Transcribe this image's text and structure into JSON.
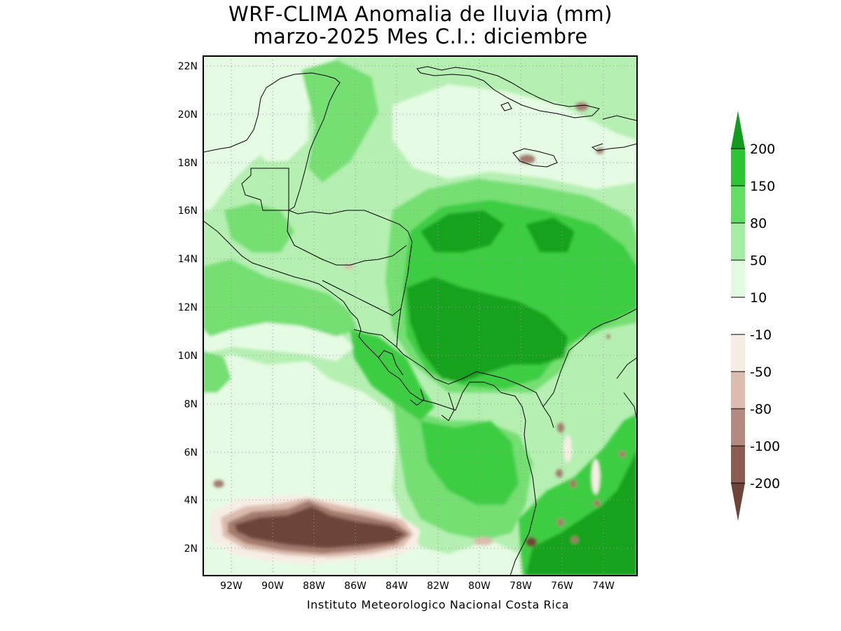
{
  "title": {
    "line1": "WRF-CLIMA Anomalia de lluvia (mm)",
    "line2": "marzo-2025 Mes C.I.: diciembre"
  },
  "footer": "Instituto Meteorologico Nacional Costa Rica",
  "map": {
    "region": "Central America, Caribbean and eastern Tropical Pacific",
    "lon_range": [
      -93.3,
      -72.3
    ],
    "lat_range": [
      1.0,
      22.5
    ],
    "grid": "dotted",
    "lat_ticks": [
      "22N",
      "20N",
      "18N",
      "16N",
      "14N",
      "12N",
      "10N",
      "8N",
      "6N",
      "4N",
      "2N"
    ],
    "lon_ticks": [
      "92W",
      "90W",
      "88W",
      "86W",
      "84W",
      "82W",
      "80W",
      "78W",
      "76W",
      "74W"
    ]
  },
  "colorbar": {
    "labels": [
      "200",
      "150",
      "80",
      "50",
      "10",
      "-10",
      "-50",
      "-80",
      "-100",
      "-200"
    ],
    "colors": [
      "#139b1d",
      "#2ec535",
      "#62de64",
      "#a5eda5",
      "#e0fbdf",
      "#ffffff",
      "#f5ede3",
      "#dcbcaf",
      "#b28a7f",
      "#8c5e52",
      "#6d4538"
    ]
  },
  "palette": {
    "g1": "#e5fbe3",
    "g2": "#b5efb2",
    "g3": "#74df72",
    "g4": "#3ecd42",
    "g5": "#15a21c",
    "b1": "#f6eee4",
    "b2": "#dcbcae",
    "b3": "#a47a6d",
    "b4": "#6d4538"
  }
}
